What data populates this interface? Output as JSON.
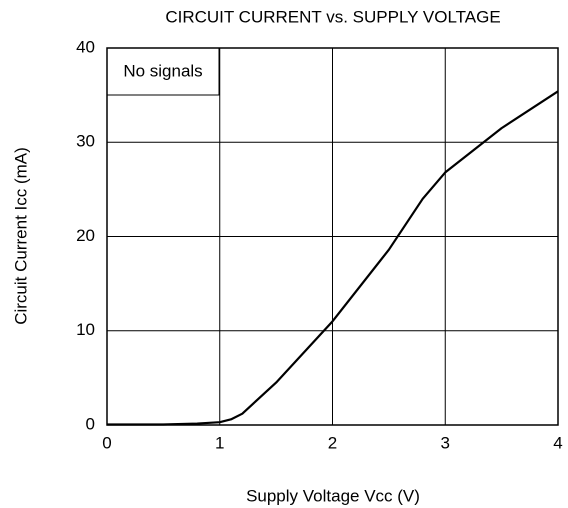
{
  "chart_data": {
    "type": "line",
    "title": "CIRCUIT CURRENT vs. SUPPLY VOLTAGE",
    "x_label": "Supply Voltage  Vcc  (V)",
    "y_label": "Circuit Current  Icc  (mA)",
    "annotation": "No signals",
    "x": [
      0,
      0.5,
      0.8,
      1,
      1.1,
      1.2,
      1.5,
      2,
      2.5,
      2.8,
      3,
      3.5,
      4
    ],
    "values": [
      0.05,
      0.05,
      0.15,
      0.3,
      0.6,
      1.2,
      4.5,
      11,
      18.6,
      24,
      26.8,
      31.5,
      35.4
    ],
    "color": "#000000",
    "xlim": [
      0,
      4
    ],
    "xticks": [
      0,
      1,
      2,
      3,
      4
    ],
    "ylim": [
      0,
      40
    ],
    "yticks": [
      0,
      10,
      20,
      30,
      40
    ],
    "grid": true
  }
}
